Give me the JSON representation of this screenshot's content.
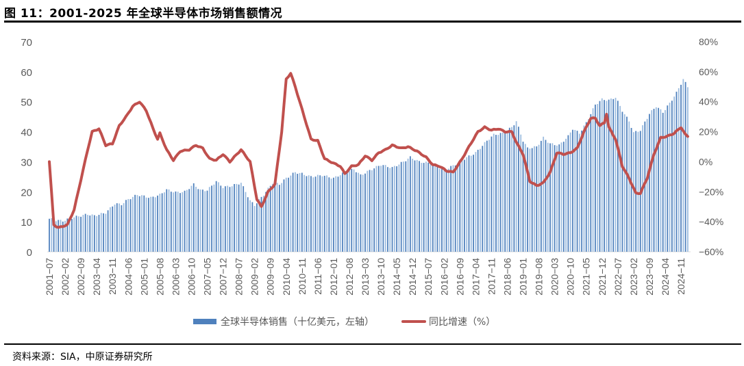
{
  "header": {
    "title": "图 11：2001-2025 年全球半导体市场销售额情况"
  },
  "legend": {
    "bar_label": "全球半导体销售（十亿美元，左轴）",
    "line_label": "同比增速（%）"
  },
  "footer": {
    "source": "资料来源：SIA，中原证券研究所"
  },
  "colors": {
    "bar_dark": "#4f81bd",
    "bar_light": "#9dbde0",
    "line": "#c0504d",
    "axis_text": "#595959",
    "axis_line": "#d9d9d9"
  },
  "chart_data": {
    "type": "bar+line",
    "title": "2001-2025年全球半导体市场销售额情况",
    "xlabel": "",
    "ylabel_left": "全球半导体销售（十亿美元）",
    "ylabel_right": "同比增速（%）",
    "ylim_left": [
      0,
      70
    ],
    "yticks_left": [
      "0",
      "10",
      "20",
      "30",
      "40",
      "50",
      "60",
      "70"
    ],
    "ylim_right": [
      -60,
      80
    ],
    "yticks_right": [
      "−60%",
      "−40%",
      "−20%",
      "0%",
      "20%",
      "40%",
      "60%",
      "80%"
    ],
    "x_start": "2001-07",
    "x_tick_labels": [
      "2001−07",
      "2002−02",
      "2002−09",
      "2003−04",
      "2003−11",
      "2004−06",
      "2005−01",
      "2005−08",
      "2006−03",
      "2006−10",
      "2007−05",
      "2007−12",
      "2008−07",
      "2009−02",
      "2009−09",
      "2010−04",
      "2010−11",
      "2011−06",
      "2012−01",
      "2012−08",
      "2013−03",
      "2013−10",
      "2014−05",
      "2014−12",
      "2015−07",
      "2016−02",
      "2016−09",
      "2017−04",
      "2017−11",
      "2018−06",
      "2019−01",
      "2019−08",
      "2020−03",
      "2020−10",
      "2021−05",
      "2021−12",
      "2022−07",
      "2023−02",
      "2023−09",
      "2024−04",
      "2024−11"
    ],
    "grid": false,
    "legend_position": "bottom",
    "series": [
      {
        "name": "全球半导体销售（十亿美元，左轴）",
        "type": "bar",
        "axis": "left",
        "anchors": [
          [
            "2001-07",
            11.0
          ],
          [
            "2001-10",
            10.5
          ],
          [
            "2002-01",
            10.3
          ],
          [
            "2002-06",
            11.5
          ],
          [
            "2002-12",
            12.5
          ],
          [
            "2003-03",
            12.0
          ],
          [
            "2003-08",
            13.0
          ],
          [
            "2003-12",
            16.0
          ],
          [
            "2004-03",
            15.8
          ],
          [
            "2004-06",
            17.5
          ],
          [
            "2004-10",
            19.0
          ],
          [
            "2005-01",
            18.5
          ],
          [
            "2005-04",
            18.0
          ],
          [
            "2005-08",
            19.0
          ],
          [
            "2005-11",
            20.7
          ],
          [
            "2006-03",
            19.8
          ],
          [
            "2006-07",
            20.0
          ],
          [
            "2006-11",
            22.5
          ],
          [
            "2007-02",
            20.5
          ],
          [
            "2007-05",
            20.5
          ],
          [
            "2007-09",
            23.5
          ],
          [
            "2007-12",
            21.5
          ],
          [
            "2008-04",
            22.0
          ],
          [
            "2008-08",
            23.0
          ],
          [
            "2008-12",
            17.0
          ],
          [
            "2009-02",
            15.5
          ],
          [
            "2009-06",
            19.0
          ],
          [
            "2009-10",
            23.0
          ],
          [
            "2010-01",
            22.5
          ],
          [
            "2010-04",
            24.5
          ],
          [
            "2010-08",
            26.5
          ],
          [
            "2010-11",
            26.0
          ],
          [
            "2011-03",
            25.0
          ],
          [
            "2011-08",
            25.5
          ],
          [
            "2012-01",
            24.5
          ],
          [
            "2012-06",
            26.5
          ],
          [
            "2012-10",
            27.5
          ],
          [
            "2013-01",
            25.5
          ],
          [
            "2013-06",
            27.5
          ],
          [
            "2013-10",
            29.0
          ],
          [
            "2014-03",
            28.0
          ],
          [
            "2014-08",
            30.0
          ],
          [
            "2014-11",
            31.5
          ],
          [
            "2015-03",
            30.0
          ],
          [
            "2015-08",
            29.5
          ],
          [
            "2015-12",
            28.0
          ],
          [
            "2016-03",
            27.5
          ],
          [
            "2016-08",
            29.5
          ],
          [
            "2016-11",
            31.0
          ],
          [
            "2017-04",
            33.0
          ],
          [
            "2017-09",
            37.0
          ],
          [
            "2017-12",
            39.0
          ],
          [
            "2018-04",
            39.5
          ],
          [
            "2018-08",
            41.5
          ],
          [
            "2018-10",
            43.5
          ],
          [
            "2019-01",
            37.0
          ],
          [
            "2019-03",
            34.5
          ],
          [
            "2019-07",
            35.0
          ],
          [
            "2019-10",
            38.0
          ],
          [
            "2020-01",
            36.0
          ],
          [
            "2020-05",
            35.5
          ],
          [
            "2020-09",
            38.5
          ],
          [
            "2020-11",
            41.0
          ],
          [
            "2021-02",
            39.5
          ],
          [
            "2021-05",
            43.0
          ],
          [
            "2021-09",
            49.0
          ],
          [
            "2021-12",
            50.8
          ],
          [
            "2022-03",
            50.5
          ],
          [
            "2022-06",
            51.5
          ],
          [
            "2022-09",
            47.0
          ],
          [
            "2022-12",
            43.5
          ],
          [
            "2023-02",
            39.7
          ],
          [
            "2023-05",
            40.5
          ],
          [
            "2023-09",
            46.0
          ],
          [
            "2023-12",
            48.5
          ],
          [
            "2024-03",
            46.5
          ],
          [
            "2024-06",
            49.5
          ],
          [
            "2024-09",
            53.0
          ],
          [
            "2024-12",
            57.5
          ],
          [
            "2025-02",
            55.0
          ]
        ]
      },
      {
        "name": "同比增速（%）",
        "type": "line",
        "axis": "right",
        "anchors": [
          [
            "2001-07",
            0
          ],
          [
            "2001-09",
            -42
          ],
          [
            "2001-11",
            -44
          ],
          [
            "2002-03",
            -42
          ],
          [
            "2002-06",
            -32
          ],
          [
            "2002-09",
            -12
          ],
          [
            "2002-12",
            8
          ],
          [
            "2003-02",
            20
          ],
          [
            "2003-05",
            22
          ],
          [
            "2003-08",
            11
          ],
          [
            "2003-11",
            12
          ],
          [
            "2004-02",
            24
          ],
          [
            "2004-05",
            30
          ],
          [
            "2004-08",
            37
          ],
          [
            "2004-11",
            40
          ],
          [
            "2005-02",
            34
          ],
          [
            "2005-05",
            22
          ],
          [
            "2005-07",
            15
          ],
          [
            "2005-08",
            19
          ],
          [
            "2005-11",
            8
          ],
          [
            "2006-02",
            1
          ],
          [
            "2006-05",
            7
          ],
          [
            "2006-09",
            8
          ],
          [
            "2006-12",
            11
          ],
          [
            "2007-03",
            9
          ],
          [
            "2007-06",
            2
          ],
          [
            "2007-09",
            1
          ],
          [
            "2007-12",
            5
          ],
          [
            "2008-03",
            0
          ],
          [
            "2008-08",
            8
          ],
          [
            "2008-12",
            0
          ],
          [
            "2009-03",
            -25
          ],
          [
            "2009-05",
            -30
          ],
          [
            "2009-08",
            -20
          ],
          [
            "2009-11",
            -15
          ],
          [
            "2010-02",
            20
          ],
          [
            "2010-04",
            55
          ],
          [
            "2010-06",
            59
          ],
          [
            "2010-08",
            50
          ],
          [
            "2010-11",
            35
          ],
          [
            "2011-03",
            15
          ],
          [
            "2011-06",
            14
          ],
          [
            "2011-09",
            2
          ],
          [
            "2012-01",
            -1
          ],
          [
            "2012-04",
            -3
          ],
          [
            "2012-06",
            -8
          ],
          [
            "2012-09",
            -3
          ],
          [
            "2012-12",
            -2
          ],
          [
            "2013-03",
            4
          ],
          [
            "2013-06",
            1
          ],
          [
            "2013-09",
            6
          ],
          [
            "2013-12",
            8
          ],
          [
            "2014-03",
            11
          ],
          [
            "2014-07",
            9
          ],
          [
            "2014-10",
            10
          ],
          [
            "2015-02",
            7
          ],
          [
            "2015-06",
            3
          ],
          [
            "2015-09",
            -2
          ],
          [
            "2015-12",
            -3
          ],
          [
            "2016-03",
            -6
          ],
          [
            "2016-06",
            -7
          ],
          [
            "2016-10",
            2
          ],
          [
            "2017-01",
            10
          ],
          [
            "2017-05",
            20
          ],
          [
            "2017-08",
            23
          ],
          [
            "2017-11",
            21
          ],
          [
            "2018-02",
            22
          ],
          [
            "2018-05",
            20
          ],
          [
            "2018-08",
            20
          ],
          [
            "2018-10",
            13
          ],
          [
            "2019-01",
            5
          ],
          [
            "2019-04",
            -13
          ],
          [
            "2019-07",
            -16
          ],
          [
            "2019-10",
            -14
          ],
          [
            "2020-01",
            -7
          ],
          [
            "2020-04",
            6
          ],
          [
            "2020-07",
            5
          ],
          [
            "2020-10",
            6
          ],
          [
            "2021-01",
            9
          ],
          [
            "2021-04",
            20
          ],
          [
            "2021-07",
            29
          ],
          [
            "2021-09",
            29
          ],
          [
            "2021-11",
            24
          ],
          [
            "2022-01",
            26
          ],
          [
            "2022-02",
            32
          ],
          [
            "2022-03",
            23
          ],
          [
            "2022-06",
            15
          ],
          [
            "2022-09",
            -3
          ],
          [
            "2022-12",
            -11
          ],
          [
            "2023-03",
            -21
          ],
          [
            "2023-05",
            -21
          ],
          [
            "2023-08",
            -11
          ],
          [
            "2023-11",
            5
          ],
          [
            "2024-02",
            16
          ],
          [
            "2024-05",
            17
          ],
          [
            "2024-08",
            19
          ],
          [
            "2024-11",
            23
          ],
          [
            "2025-01",
            18
          ],
          [
            "2025-02",
            17
          ]
        ]
      }
    ]
  }
}
